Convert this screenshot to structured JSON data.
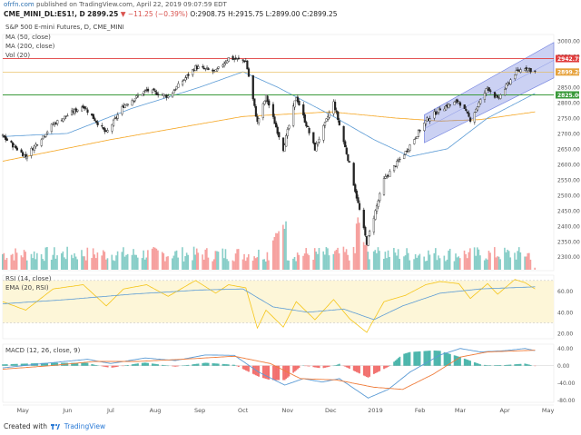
{
  "header": {
    "site": "ofrfn.com",
    "publish_text": "published on TradingView.com, April 22, 2019 09:07:59 EDT",
    "symbol": "CME_MINI_DL:ES1!, D",
    "last_price": "2899.25",
    "change_text": "▼ −11.25 (−0.39%)",
    "ohlc": "O:2908.75 H:2915.75 L:2899.00 C:2899.25"
  },
  "legends": {
    "instrument": "S&P 500 E-mini Futures, D, CME_MINI",
    "ma50": "MA (50, close)",
    "ma200": "MA (200, close)",
    "vol": "Vol (20)",
    "rsi": "RSI (14, close)",
    "ema": "EMA (20, RSI)",
    "macd": "MACD (12, 26, close, 9)"
  },
  "footer": {
    "created_with": "Created with",
    "brand": "TradingView"
  },
  "colors": {
    "up": "#26a69a",
    "down": "#ef5350",
    "candle": "#222222",
    "ma50": "#5b9bd5",
    "ma200": "#f5a623",
    "resistance": "#e03c3c",
    "support": "#3a9a3a",
    "priceline": "#e6b84d",
    "channel": "#6b7bde",
    "rsi_line": "#f5c518",
    "ema_line": "#5b9bd5",
    "macd_line": "#5b9bd5",
    "signal_line": "#ef7d3c",
    "label_red": "#e03c3c",
    "label_green": "#3a9a3a",
    "label_orange": "#e6a23c"
  },
  "chart_data": {
    "type": "candlestick",
    "x_range": [
      "2018-04-17",
      "2019-05-05"
    ],
    "x_tick_labels": [
      "May",
      "Jun",
      "Jul",
      "Aug",
      "Sep",
      "Oct",
      "Nov",
      "Dec",
      "2019",
      "Feb",
      "Mar",
      "Apr",
      "May"
    ],
    "x_tick_dates": [
      "2018-05-01",
      "2018-06-01",
      "2018-07-01",
      "2018-08-01",
      "2018-09-01",
      "2018-10-01",
      "2018-11-01",
      "2018-12-01",
      "2019-01-01",
      "2019-02-01",
      "2019-03-01",
      "2019-04-01",
      "2019-05-01"
    ],
    "price_axis": {
      "ylim": [
        2255,
        3015
      ],
      "ticks": [
        3000,
        2950,
        2900,
        2850,
        2800,
        2750,
        2700,
        2650,
        2600,
        2550,
        2500,
        2450,
        2400,
        2350,
        2300
      ]
    },
    "price_path": [
      [
        "2018-04-17",
        2690
      ],
      [
        "2018-05-03",
        2625
      ],
      [
        "2018-05-22",
        2730
      ],
      [
        "2018-06-12",
        2790
      ],
      [
        "2018-06-28",
        2700
      ],
      [
        "2018-07-10",
        2790
      ],
      [
        "2018-07-26",
        2840
      ],
      [
        "2018-08-10",
        2820
      ],
      [
        "2018-08-29",
        2915
      ],
      [
        "2018-09-12",
        2900
      ],
      [
        "2018-09-21",
        2945
      ],
      [
        "2018-10-03",
        2935
      ],
      [
        "2018-10-11",
        2735
      ],
      [
        "2018-10-17",
        2820
      ],
      [
        "2018-10-29",
        2650
      ],
      [
        "2018-11-07",
        2820
      ],
      [
        "2018-11-20",
        2650
      ],
      [
        "2018-12-03",
        2800
      ],
      [
        "2018-12-14",
        2600
      ],
      [
        "2018-12-26",
        2345
      ],
      [
        "2019-01-07",
        2550
      ],
      [
        "2019-01-22",
        2640
      ],
      [
        "2019-02-05",
        2740
      ],
      [
        "2019-02-15",
        2780
      ],
      [
        "2019-02-28",
        2805
      ],
      [
        "2019-03-08",
        2745
      ],
      [
        "2019-03-20",
        2850
      ],
      [
        "2019-03-27",
        2810
      ],
      [
        "2019-04-08",
        2895
      ],
      [
        "2019-04-15",
        2915
      ],
      [
        "2019-04-22",
        2899.25
      ]
    ],
    "ma50_path": [
      [
        "2018-04-17",
        2690
      ],
      [
        "2018-06-01",
        2700
      ],
      [
        "2018-07-15",
        2780
      ],
      [
        "2018-09-01",
        2850
      ],
      [
        "2018-10-01",
        2900
      ],
      [
        "2018-10-25",
        2850
      ],
      [
        "2018-12-01",
        2760
      ],
      [
        "2018-12-31",
        2680
      ],
      [
        "2019-01-25",
        2625
      ],
      [
        "2019-02-20",
        2650
      ],
      [
        "2019-03-20",
        2750
      ],
      [
        "2019-04-22",
        2830
      ]
    ],
    "ma200_path": [
      [
        "2018-04-17",
        2610
      ],
      [
        "2018-07-01",
        2680
      ],
      [
        "2018-10-01",
        2755
      ],
      [
        "2018-12-01",
        2770
      ],
      [
        "2019-01-15",
        2750
      ],
      [
        "2019-02-15",
        2740
      ],
      [
        "2019-03-15",
        2745
      ],
      [
        "2019-04-22",
        2770
      ]
    ],
    "horizontal_levels": [
      {
        "value": 2942.75,
        "label": "2942.75",
        "kind": "resistance"
      },
      {
        "value": 2899.25,
        "label": "2899.25",
        "kind": "last"
      },
      {
        "value": 2825.0,
        "label": "2825.00",
        "kind": "support"
      }
    ],
    "channel": {
      "start": "2019-02-04",
      "end": "2019-05-05",
      "upper": [
        2760,
        2995
      ],
      "lower": [
        2670,
        2880
      ]
    },
    "volume": {
      "peaks": [
        [
          "2018-10-24",
          0.55
        ],
        [
          "2018-10-29",
          0.7
        ],
        [
          "2018-12-21",
          0.78
        ],
        [
          "2018-12-24",
          0.42
        ],
        [
          "2019-01-02",
          0.32
        ]
      ],
      "last_date": "2019-04-22"
    },
    "rsi": {
      "ylim": [
        15,
        75
      ],
      "ticks": [
        60.0,
        40.0,
        20.0
      ],
      "band": [
        30,
        70
      ],
      "path": [
        [
          "2018-04-17",
          50
        ],
        [
          "2018-05-03",
          42
        ],
        [
          "2018-05-22",
          62
        ],
        [
          "2018-06-12",
          66
        ],
        [
          "2018-06-28",
          46
        ],
        [
          "2018-07-10",
          62
        ],
        [
          "2018-07-26",
          66
        ],
        [
          "2018-08-10",
          55
        ],
        [
          "2018-08-29",
          70
        ],
        [
          "2018-09-12",
          58
        ],
        [
          "2018-09-21",
          66
        ],
        [
          "2018-10-03",
          63
        ],
        [
          "2018-10-11",
          25
        ],
        [
          "2018-10-17",
          42
        ],
        [
          "2018-10-29",
          26
        ],
        [
          "2018-11-07",
          50
        ],
        [
          "2018-11-20",
          33
        ],
        [
          "2018-12-03",
          52
        ],
        [
          "2018-12-14",
          34
        ],
        [
          "2018-12-26",
          21
        ],
        [
          "2019-01-07",
          50
        ],
        [
          "2019-01-22",
          56
        ],
        [
          "2019-02-05",
          66
        ],
        [
          "2019-02-15",
          69
        ],
        [
          "2019-02-28",
          67
        ],
        [
          "2019-03-08",
          53
        ],
        [
          "2019-03-20",
          67
        ],
        [
          "2019-03-27",
          57
        ],
        [
          "2019-04-08",
          71
        ],
        [
          "2019-04-15",
          68
        ],
        [
          "2019-04-22",
          62
        ]
      ],
      "ema_path": [
        [
          "2018-04-17",
          48
        ],
        [
          "2018-06-01",
          52
        ],
        [
          "2018-07-15",
          57
        ],
        [
          "2018-09-01",
          61
        ],
        [
          "2018-10-01",
          62
        ],
        [
          "2018-10-22",
          45
        ],
        [
          "2018-11-15",
          40
        ],
        [
          "2018-12-10",
          43
        ],
        [
          "2018-12-31",
          33
        ],
        [
          "2019-01-20",
          46
        ],
        [
          "2019-02-15",
          58
        ],
        [
          "2019-03-15",
          62
        ],
        [
          "2019-04-22",
          64
        ]
      ]
    },
    "macd": {
      "ylim": [
        -85,
        50
      ],
      "ticks": [
        40.0,
        0.0,
        -40.0,
        -80.0
      ],
      "macd_path": [
        [
          "2018-04-17",
          -5
        ],
        [
          "2018-05-15",
          5
        ],
        [
          "2018-06-15",
          15
        ],
        [
          "2018-07-01",
          5
        ],
        [
          "2018-07-25",
          18
        ],
        [
          "2018-08-15",
          12
        ],
        [
          "2018-09-05",
          25
        ],
        [
          "2018-09-25",
          24
        ],
        [
          "2018-10-12",
          -15
        ],
        [
          "2018-10-30",
          -45
        ],
        [
          "2018-11-12",
          -30
        ],
        [
          "2018-11-25",
          -38
        ],
        [
          "2018-12-07",
          -30
        ],
        [
          "2018-12-27",
          -75
        ],
        [
          "2019-01-10",
          -55
        ],
        [
          "2019-01-25",
          -15
        ],
        [
          "2019-02-15",
          25
        ],
        [
          "2019-03-01",
          40
        ],
        [
          "2019-03-15",
          32
        ],
        [
          "2019-04-01",
          35
        ],
        [
          "2019-04-15",
          40
        ],
        [
          "2019-04-22",
          35
        ]
      ],
      "signal_path": [
        [
          "2018-04-17",
          -8
        ],
        [
          "2018-05-20",
          0
        ],
        [
          "2018-06-20",
          10
        ],
        [
          "2018-07-20",
          10
        ],
        [
          "2018-08-20",
          15
        ],
        [
          "2018-09-25",
          22
        ],
        [
          "2018-10-20",
          5
        ],
        [
          "2018-11-10",
          -30
        ],
        [
          "2018-12-05",
          -33
        ],
        [
          "2018-12-31",
          -50
        ],
        [
          "2019-01-20",
          -55
        ],
        [
          "2019-02-10",
          -20
        ],
        [
          "2019-03-01",
          20
        ],
        [
          "2019-03-20",
          32
        ],
        [
          "2019-04-22",
          36
        ]
      ]
    }
  }
}
